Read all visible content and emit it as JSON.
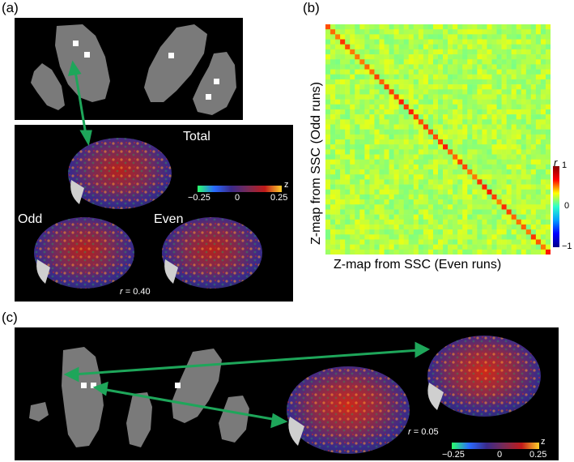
{
  "panels": {
    "a": {
      "label": "(a)",
      "brain_labels": {
        "total": "Total",
        "odd": "Odd",
        "even": "Even"
      },
      "r_prefix": "r",
      "r_value": " = 0.40",
      "colorbar": {
        "min": "−0.25",
        "mid": "0",
        "max": "0.25",
        "unit": "z"
      }
    },
    "b": {
      "label": "(b)",
      "ylabel": "Z-map from SSC (Odd runs)",
      "xlabel": "Z-map from SSC (Even runs)",
      "colorbar": {
        "title": "r",
        "max": "1",
        "mid": "0",
        "min": "−1"
      }
    },
    "c": {
      "label": "(c)",
      "r_prefix": "r",
      "r_value": " = 0.05",
      "colorbar": {
        "min": "−0.25",
        "mid": "0",
        "max": "0.25",
        "unit": "z"
      }
    }
  },
  "colors": {
    "arrow": "#1ea65a",
    "slice_gray": "#7a7a7a",
    "background": "#000000"
  },
  "chart_data": {
    "type": "heatmap",
    "description_values": "correlation matrix, diagonal r≈0.6, off-diagonal r≈0.1",
    "diagonal_r": 0.6,
    "offdiagonal_r": 0.1,
    "clim": [
      -1,
      1
    ],
    "xlabel": "Z-map from SSC (Even runs)",
    "ylabel": "Z-map from SSC (Odd runs)",
    "colorbar_label": "r"
  }
}
